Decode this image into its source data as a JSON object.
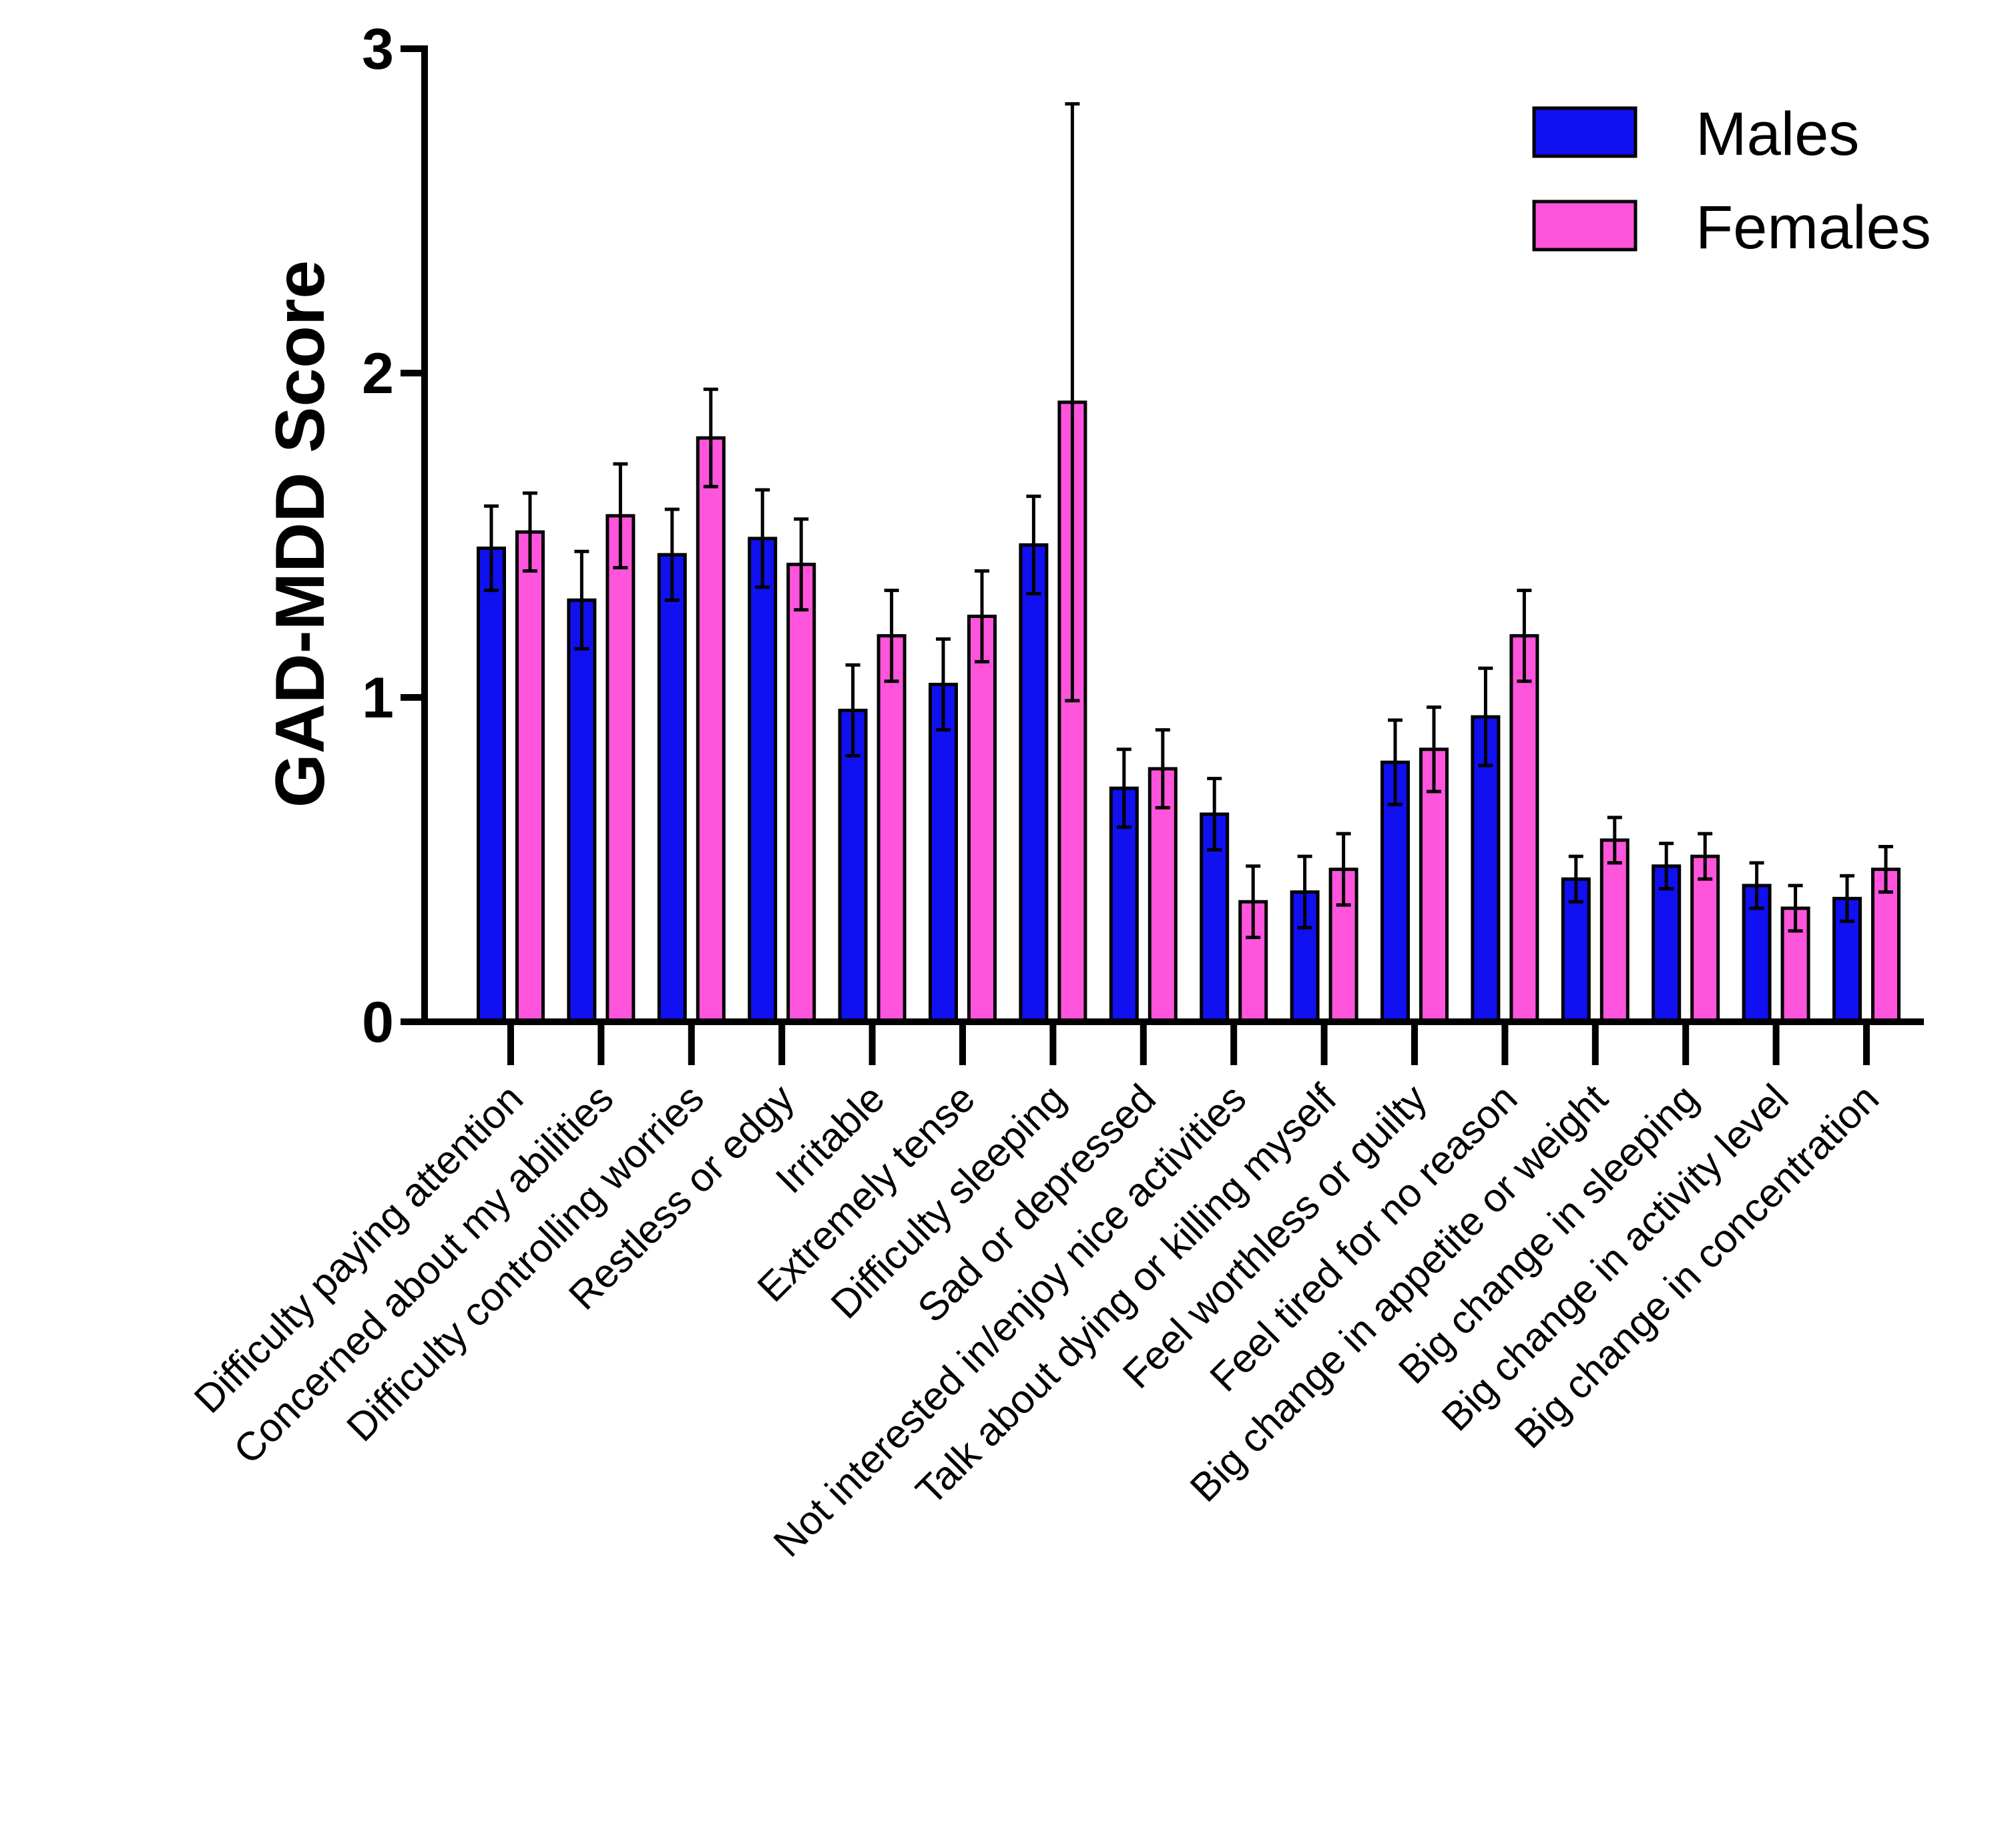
{
  "chart_data": {
    "type": "bar",
    "title": "",
    "xlabel": "",
    "ylabel": "GAD-MDD Score",
    "ylim": [
      0,
      3
    ],
    "yticks": [
      "0",
      "1",
      "2",
      "3"
    ],
    "legend_position": "top-right",
    "colors": {
      "Males": "#1010f0",
      "Females": "#ff55dd"
    },
    "categories": [
      "Difficulty paying attention",
      "Concerned about my abilities",
      "Difficulty controlling worries",
      "Restless or edgy",
      "Irritable",
      "Extremely tense",
      "Difficulty sleeping",
      "Sad or depressed",
      "Not interested in/enjoy nice activities",
      "Talk about dying or killing myself",
      "Feel worthless or guilty",
      "Feel tired for no reason",
      "Big change in appetite or weight",
      "Big change in sleeping",
      "Big change in activity level",
      "Big change in concentration"
    ],
    "series": [
      {
        "name": "Males",
        "values": [
          1.46,
          1.3,
          1.44,
          1.49,
          0.96,
          1.04,
          1.47,
          0.72,
          0.64,
          0.4,
          0.8,
          0.94,
          0.44,
          0.48,
          0.42,
          0.38
        ],
        "errors": [
          0.13,
          0.15,
          0.14,
          0.15,
          0.14,
          0.14,
          0.15,
          0.12,
          0.11,
          0.11,
          0.13,
          0.15,
          0.07,
          0.07,
          0.07,
          0.07
        ]
      },
      {
        "name": "Females",
        "values": [
          1.51,
          1.56,
          1.8,
          1.41,
          1.19,
          1.25,
          1.91,
          0.78,
          0.37,
          0.47,
          0.84,
          1.19,
          0.56,
          0.51,
          0.35,
          0.47
        ],
        "errors": [
          0.12,
          0.16,
          0.15,
          0.14,
          0.14,
          0.14,
          0.92,
          0.12,
          0.11,
          0.11,
          0.13,
          0.14,
          0.07,
          0.07,
          0.07,
          0.07
        ]
      }
    ]
  }
}
